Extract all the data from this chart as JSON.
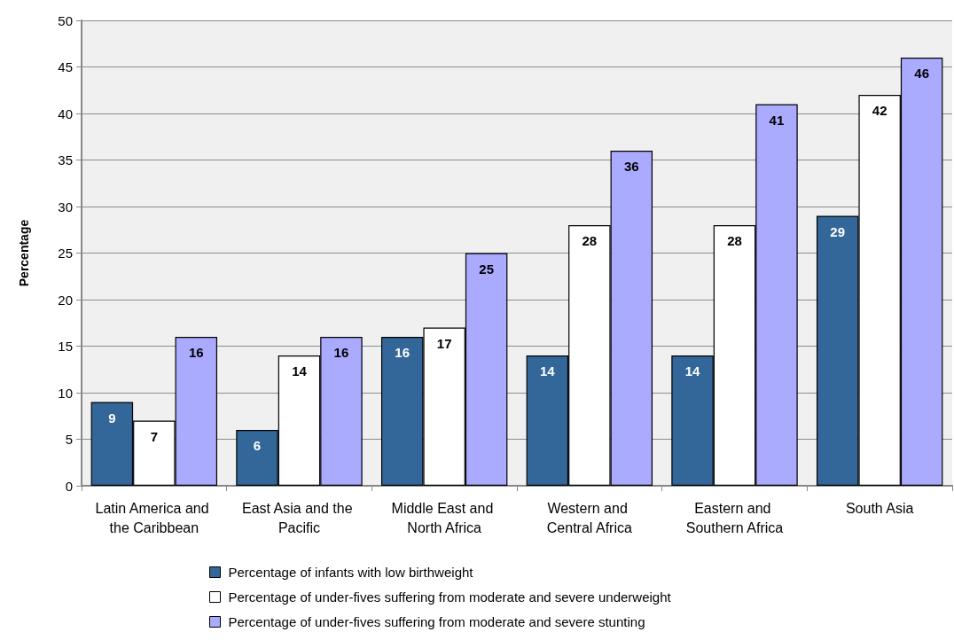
{
  "chart_data": {
    "type": "bar",
    "ylabel": "Percentage",
    "categories": [
      "Latin America and the Caribbean",
      "East Asia and the Pacific",
      "Middle East and North Africa",
      "Western and Central Africa",
      "Eastern and Southern Africa",
      "South Asia"
    ],
    "series": [
      {
        "name": "Percentage of infants with low birthweight",
        "color": "#336699",
        "values": [
          9,
          6,
          16,
          14,
          14,
          29
        ]
      },
      {
        "name": "Percentage of under-fives suffering from moderate and severe underweight",
        "color": "#ffffff",
        "values": [
          7,
          14,
          17,
          28,
          28,
          42
        ]
      },
      {
        "name": "Percentage of under-fives suffering from moderate and severe stunting",
        "color": "#aaaaff",
        "values": [
          16,
          16,
          25,
          36,
          41,
          46
        ]
      }
    ],
    "ylim": [
      0,
      50
    ],
    "yticks": [
      0,
      5,
      10,
      15,
      20,
      25,
      30,
      35,
      40,
      45,
      50
    ],
    "grid": "y",
    "legend": "bottom",
    "data_labels": true
  }
}
